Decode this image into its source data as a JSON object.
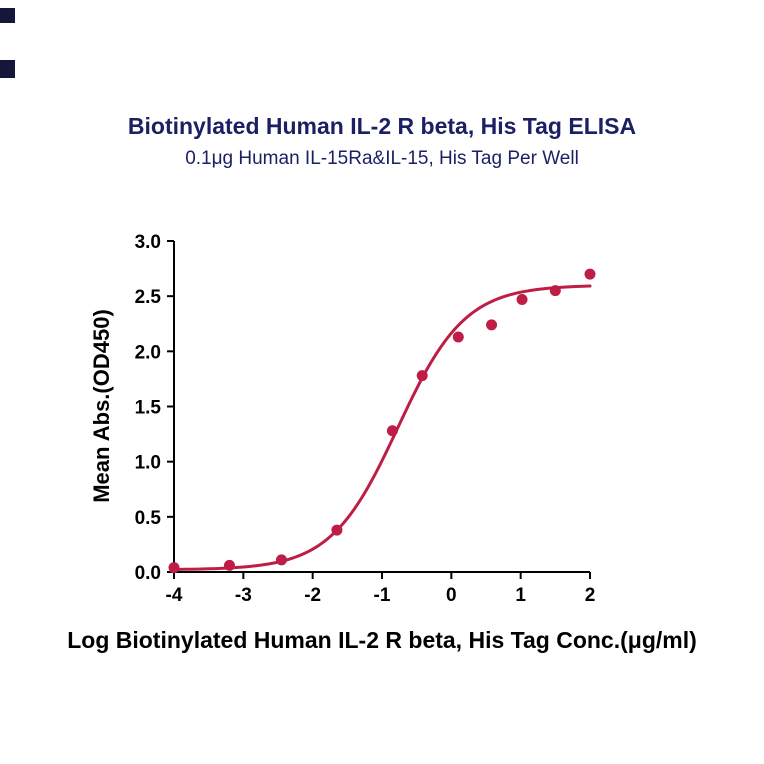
{
  "header": {
    "title": "Biotinylated Human IL-2 R beta, His Tag ELISA",
    "subtitle": "0.1μg Human IL-15Ra&IL-15, His Tag Per Well"
  },
  "colors": {
    "heading": "#1B1F63",
    "axis": "#000000",
    "curve": "#BE1E46",
    "point": "#BE1E46"
  },
  "chart_data": {
    "type": "scatter",
    "title": "Biotinylated Human IL-2 R beta, His Tag ELISA",
    "subtitle": "0.1μg Human IL-15Ra&IL-15, His Tag Per Well",
    "xlabel": "Log Biotinylated Human IL-2 R beta, His Tag Conc.(μg/ml)",
    "ylabel": "Mean Abs.(OD450)",
    "xlim": [
      -4,
      2
    ],
    "ylim": [
      0,
      3
    ],
    "x_ticks": [
      "-4",
      "-3",
      "-2",
      "-1",
      "0",
      "1",
      "2"
    ],
    "y_ticks": [
      "0.0",
      "0.5",
      "1.0",
      "1.5",
      "2.0",
      "2.5",
      "3.0"
    ],
    "grid": false,
    "legend": "none",
    "points": {
      "x": [
        -4.0,
        -3.2,
        -2.45,
        -1.65,
        -0.85,
        -0.42,
        0.1,
        0.58,
        1.02,
        1.5,
        2.0
      ],
      "y": [
        0.04,
        0.06,
        0.11,
        0.38,
        1.28,
        1.78,
        2.13,
        2.24,
        2.47,
        2.55,
        2.7
      ]
    },
    "fit": {
      "model": "4PL",
      "bottom": 0.02,
      "top": 2.6,
      "logEC50": -0.77,
      "hill": 0.9
    }
  }
}
